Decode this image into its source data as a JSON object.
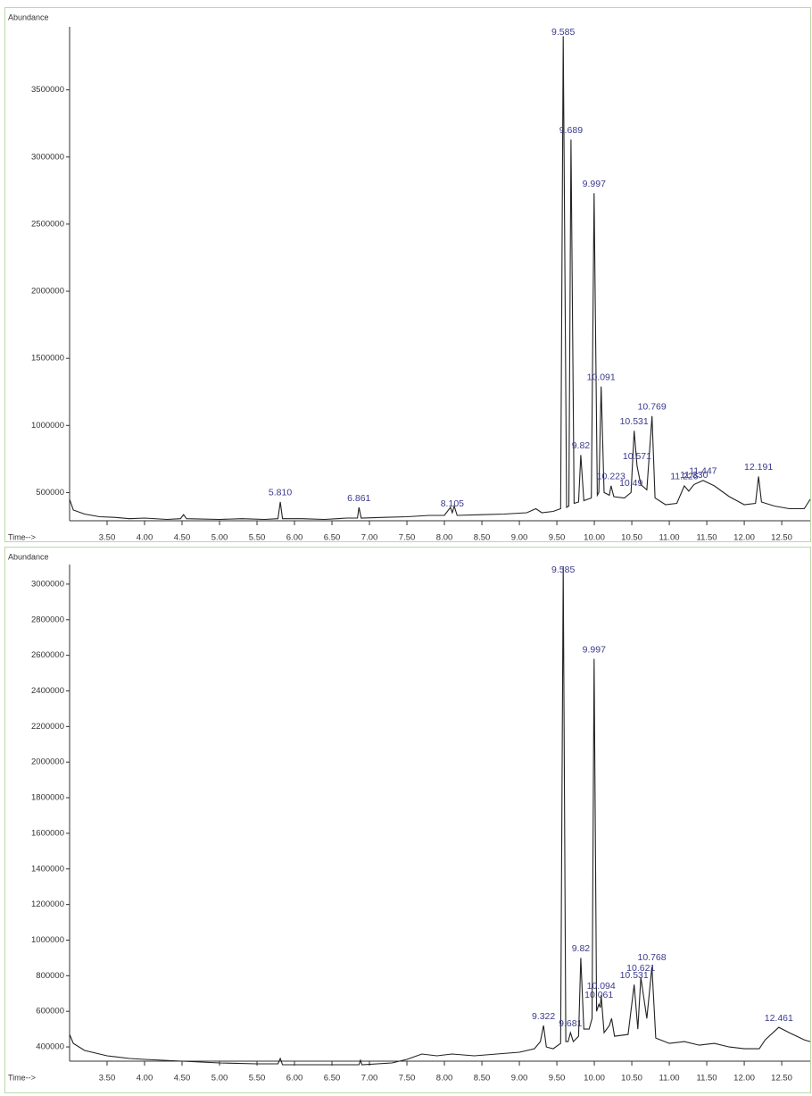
{
  "chart_data": [
    {
      "type": "line",
      "ylabel": "Abundance",
      "xlabel": "Time-->",
      "color": "#222222",
      "xlim": [
        3.0,
        12.88
      ],
      "ylim": [
        290000,
        3970000
      ],
      "xticks": [
        {
          "value": 3.5,
          "label": "3.50"
        },
        {
          "value": 4,
          "label": "4.00"
        },
        {
          "value": 4.5,
          "label": "4.50"
        },
        {
          "value": 5,
          "label": "5.00"
        },
        {
          "value": 5.5,
          "label": "5.50"
        },
        {
          "value": 6,
          "label": "6.00"
        },
        {
          "value": 6.5,
          "label": "6.50"
        },
        {
          "value": 7,
          "label": "7.00"
        },
        {
          "value": 7.5,
          "label": "7.50"
        },
        {
          "value": 8,
          "label": "8.00"
        },
        {
          "value": 8.5,
          "label": "8.50"
        },
        {
          "value": 9,
          "label": "9.00"
        },
        {
          "value": 9.5,
          "label": "9.50"
        },
        {
          "value": 10,
          "label": "10.00"
        },
        {
          "value": 10.5,
          "label": "10.50"
        },
        {
          "value": 11,
          "label": "11.00"
        },
        {
          "value": 11.5,
          "label": "11.50"
        },
        {
          "value": 12,
          "label": "12.00"
        },
        {
          "value": 12.5,
          "label": "12.50"
        }
      ],
      "yticks": [
        500000,
        1000000,
        1500000,
        2000000,
        2500000,
        3000000,
        3500000
      ],
      "x": [
        3.0,
        3.05,
        3.2,
        3.4,
        3.6,
        3.8,
        4.0,
        4.3,
        4.48,
        4.52,
        4.56,
        5.0,
        5.3,
        5.6,
        5.78,
        5.81,
        5.84,
        6.1,
        6.4,
        6.7,
        6.84,
        6.86,
        6.89,
        7.2,
        7.5,
        7.8,
        8.0,
        8.08,
        8.105,
        8.13,
        8.17,
        8.5,
        8.8,
        9.1,
        9.22,
        9.3,
        9.45,
        9.55,
        9.585,
        9.63,
        9.66,
        9.689,
        9.73,
        9.79,
        9.82,
        9.86,
        9.96,
        9.997,
        10.04,
        10.06,
        10.091,
        10.13,
        10.2,
        10.223,
        10.26,
        10.4,
        10.49,
        10.531,
        10.57,
        10.62,
        10.7,
        10.769,
        10.81,
        10.95,
        11.1,
        11.2,
        11.26,
        11.33,
        11.45,
        11.6,
        11.8,
        12.0,
        12.15,
        12.191,
        12.23,
        12.4,
        12.6,
        12.8,
        12.88
      ],
      "values": [
        450000,
        370000,
        340000,
        320000,
        315000,
        305000,
        310000,
        300000,
        305000,
        335000,
        305000,
        300000,
        305000,
        300000,
        305000,
        430000,
        305000,
        305000,
        300000,
        310000,
        310000,
        390000,
        310000,
        315000,
        320000,
        330000,
        330000,
        390000,
        350000,
        400000,
        330000,
        335000,
        340000,
        350000,
        380000,
        350000,
        360000,
        380000,
        3900000,
        390000,
        400000,
        3130000,
        420000,
        430000,
        780000,
        440000,
        460000,
        2730000,
        480000,
        500000,
        1290000,
        500000,
        480000,
        550000,
        470000,
        460000,
        500000,
        960000,
        700000,
        560000,
        520000,
        1070000,
        460000,
        410000,
        420000,
        550000,
        510000,
        560000,
        590000,
        550000,
        470000,
        410000,
        420000,
        620000,
        430000,
        400000,
        380000,
        380000,
        450000
      ],
      "annotations": [
        {
          "text": "5.810",
          "x": 5.81
        },
        {
          "text": "6.861",
          "x": 6.86
        },
        {
          "text": "8.105",
          "x": 8.105
        },
        {
          "text": "9.585",
          "x": 9.585
        },
        {
          "text": "9.689",
          "x": 9.689
        },
        {
          "text": "9.82",
          "x": 9.82
        },
        {
          "text": "9.997",
          "x": 9.997
        },
        {
          "text": "10.091",
          "x": 10.091
        },
        {
          "text": "10.223",
          "x": 10.223
        },
        {
          "text": "10.49",
          "x": 10.49
        },
        {
          "text": "10.531",
          "x": 10.531
        },
        {
          "text": "10.571",
          "x": 10.57
        },
        {
          "text": "10.769",
          "x": 10.769
        },
        {
          "text": "11.226",
          "x": 11.2
        },
        {
          "text": "11.330",
          "x": 11.33
        },
        {
          "text": "11.447",
          "x": 11.45
        },
        {
          "text": "12.191",
          "x": 12.191
        }
      ]
    },
    {
      "type": "line",
      "ylabel": "Abundance",
      "xlabel": "Time-->",
      "color": "#222222",
      "xlim": [
        3.0,
        12.88
      ],
      "ylim": [
        320000,
        3110000
      ],
      "xticks": [
        {
          "value": 3.5,
          "label": "3.50"
        },
        {
          "value": 4,
          "label": "4.00"
        },
        {
          "value": 4.5,
          "label": "4.50"
        },
        {
          "value": 5,
          "label": "5.00"
        },
        {
          "value": 5.5,
          "label": "5.50"
        },
        {
          "value": 6,
          "label": "6.00"
        },
        {
          "value": 6.5,
          "label": "6.50"
        },
        {
          "value": 7,
          "label": "7.00"
        },
        {
          "value": 7.5,
          "label": "7.50"
        },
        {
          "value": 8,
          "label": "8.00"
        },
        {
          "value": 8.5,
          "label": "8.50"
        },
        {
          "value": 9,
          "label": "9.00"
        },
        {
          "value": 9.5,
          "label": "9.50"
        },
        {
          "value": 10,
          "label": "10.00"
        },
        {
          "value": 10.5,
          "label": "10.50"
        },
        {
          "value": 11,
          "label": "11.00"
        },
        {
          "value": 11.5,
          "label": "11.50"
        },
        {
          "value": 12,
          "label": "12.00"
        },
        {
          "value": 12.5,
          "label": "12.50"
        }
      ],
      "yticks": [
        400000,
        600000,
        800000,
        1000000,
        1200000,
        1400000,
        1600000,
        1800000,
        2000000,
        2200000,
        2400000,
        2600000,
        2800000,
        3000000
      ],
      "x": [
        3.0,
        3.05,
        3.2,
        3.5,
        3.8,
        4.0,
        4.5,
        5.0,
        5.5,
        5.78,
        5.81,
        5.84,
        6.2,
        6.6,
        6.86,
        6.88,
        6.9,
        7.3,
        7.5,
        7.7,
        7.9,
        8.1,
        8.4,
        8.7,
        9.0,
        9.2,
        9.28,
        9.322,
        9.36,
        9.45,
        9.55,
        9.585,
        9.62,
        9.65,
        9.681,
        9.72,
        9.79,
        9.82,
        9.86,
        9.93,
        9.97,
        9.997,
        10.03,
        10.061,
        10.08,
        10.091,
        10.13,
        10.2,
        10.23,
        10.27,
        10.45,
        10.531,
        10.58,
        10.621,
        10.7,
        10.768,
        10.82,
        11.0,
        11.2,
        11.4,
        11.6,
        11.8,
        12.0,
        12.2,
        12.28,
        12.461,
        12.6,
        12.8,
        12.88
      ],
      "values": [
        470000,
        420000,
        380000,
        350000,
        335000,
        330000,
        320000,
        310000,
        305000,
        305000,
        335000,
        300000,
        300000,
        300000,
        300000,
        325000,
        300000,
        310000,
        330000,
        360000,
        350000,
        360000,
        350000,
        360000,
        370000,
        390000,
        430000,
        520000,
        400000,
        390000,
        420000,
        3100000,
        430000,
        430000,
        480000,
        430000,
        460000,
        900000,
        500000,
        500000,
        560000,
        2580000,
        600000,
        640000,
        620000,
        690000,
        480000,
        520000,
        560000,
        460000,
        470000,
        750000,
        500000,
        790000,
        560000,
        850000,
        450000,
        420000,
        430000,
        410000,
        420000,
        400000,
        390000,
        390000,
        440000,
        510000,
        480000,
        440000,
        430000
      ],
      "annotations": [
        {
          "text": "9.322",
          "x": 9.322
        },
        {
          "text": "9.681",
          "x": 9.681
        },
        {
          "text": "9.585",
          "x": 9.585
        },
        {
          "text": "9.82",
          "x": 9.82
        },
        {
          "text": "9.997",
          "x": 9.997
        },
        {
          "text": "10.061",
          "x": 10.061
        },
        {
          "text": "10.094",
          "x": 10.091
        },
        {
          "text": "10.531",
          "x": 10.531
        },
        {
          "text": "10.621",
          "x": 10.621
        },
        {
          "text": "10.768",
          "x": 10.768
        },
        {
          "text": "12.461",
          "x": 12.461
        }
      ]
    }
  ]
}
